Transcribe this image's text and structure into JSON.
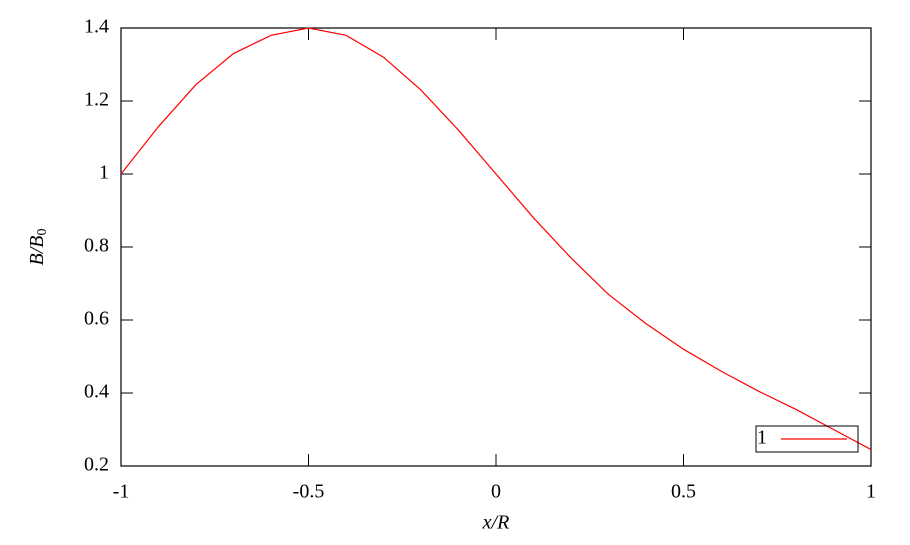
{
  "chart_data": {
    "type": "line",
    "xlabel": "x/R",
    "ylabel": "B/B",
    "ylabel_subscript": "0",
    "x": [
      -1,
      -0.9,
      -0.8,
      -0.7,
      -0.6,
      -0.5,
      -0.4,
      -0.3,
      -0.2,
      -0.1,
      0,
      0.1,
      0.2,
      0.3,
      0.4,
      0.5,
      0.6,
      0.7,
      0.8,
      0.9,
      1
    ],
    "series": [
      {
        "name": "1",
        "color": "#ff0000",
        "values": [
          1.0,
          1.13,
          1.245,
          1.33,
          1.38,
          1.4,
          1.38,
          1.32,
          1.23,
          1.12,
          1.0,
          0.88,
          0.77,
          0.67,
          0.59,
          0.52,
          0.46,
          0.405,
          0.355,
          0.3,
          0.245
        ]
      }
    ],
    "xlim": [
      -1,
      1
    ],
    "ylim": [
      0.2,
      1.4
    ],
    "xticks": [
      -1,
      -0.5,
      0,
      0.5,
      1
    ],
    "yticks": [
      0.2,
      0.4,
      0.6,
      0.8,
      1,
      1.2,
      1.4
    ],
    "grid": false,
    "legend": "lower right"
  }
}
